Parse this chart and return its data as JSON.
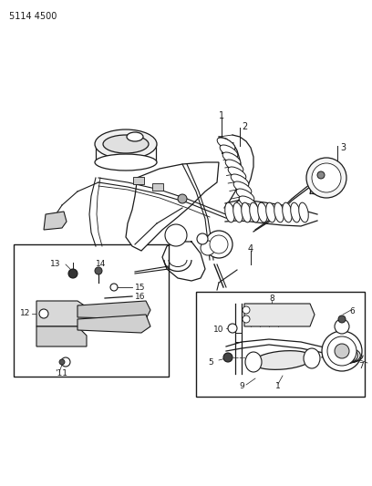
{
  "part_number": "5114 4500",
  "background_color": "#ffffff",
  "line_color": "#1a1a1a",
  "figsize": [
    4.08,
    5.33
  ],
  "dpi": 100
}
